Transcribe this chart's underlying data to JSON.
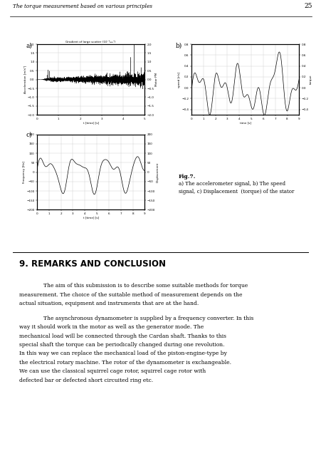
{
  "page_title": "The torque measurement based on various principles",
  "page_number": "25",
  "fig_caption_bold": "Fig.7.",
  "fig_caption_rest": "a) The accelerometer signal, b) The speed\nsignal, c) Displacement  (torque) of the stator",
  "section_title": "9. REMARKS AND CONCLUSION",
  "paragraph1": "The aim of this submission is to describe some suitable methods for torque measurement. The choice of the suitable method of measurement depends on the actual situation, equipment and instruments that are at the hand.",
  "paragraph2": "The asynchronous dynamometer is supplied by a frequency converter. In this way it should work in the motor as well as the generator mode. The mechanical load will be connected through the Cardan shaft. Thanks to this special shaft the torque can be periodically changed during one revolution. In this way we can replace the mechanical load of the piston-engine-type by the electrical rotary machine. The rotor of the dynamometer is exchangeable. We can use the classical squirrel cage rotor, squirrel cage rotor with defected bar or defected short circuited ring etc.",
  "bg_color": "#ffffff",
  "plot_bg": "#ffffff",
  "grid_color": "#cccccc",
  "line_color": "#000000",
  "label_a": "a)",
  "label_b": "b)",
  "label_c": "c)",
  "plot_a_title": "Gradient of large scatter (10⁻³ω₀²)",
  "plot_a_ylabel": "Acceleration [m/s²]",
  "plot_a_xlabel": "t [time] [s]",
  "plot_a_ylabel2": "Motor PM",
  "plot_b_ylabel": "speed [r/s]",
  "plot_b_xlabel": "time [s]",
  "plot_b_ylabel2": "torque",
  "plot_c_ylabel": "Frequency [Hz]",
  "plot_c_xlabel": "t [time] [s]",
  "plot_c_ylabel2": "Displacement"
}
